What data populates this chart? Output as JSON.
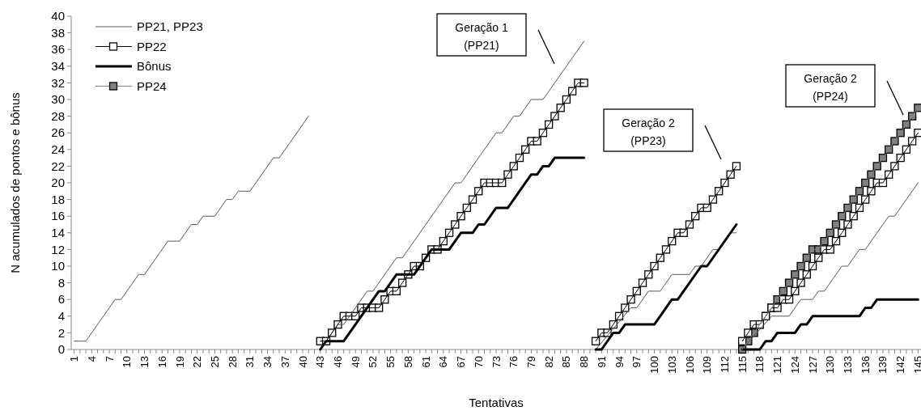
{
  "chart_data": {
    "type": "line",
    "xlabel": "Tentativas",
    "ylabel": "N acumulados de pontos e bônus",
    "xlim": [
      0.5,
      145.5
    ],
    "xticks": [
      1,
      4,
      7,
      10,
      13,
      16,
      19,
      22,
      25,
      28,
      31,
      34,
      37,
      40,
      43,
      46,
      49,
      52,
      55,
      58,
      61,
      64,
      67,
      70,
      73,
      76,
      79,
      82,
      85,
      88,
      91,
      94,
      97,
      100,
      103,
      106,
      109,
      112,
      115,
      118,
      121,
      124,
      127,
      130,
      133,
      136,
      139,
      142,
      145
    ],
    "ylim": [
      0,
      40
    ],
    "yticks": [
      0,
      2,
      4,
      6,
      8,
      10,
      12,
      14,
      16,
      18,
      20,
      22,
      24,
      26,
      28,
      30,
      32,
      34,
      36,
      38,
      40
    ],
    "legend": "top left",
    "annotations": [
      "Geração 1\n(PP21)",
      "Geração 2\n(PP23)",
      "Geração 2\n(PP24)"
    ],
    "series": [
      {
        "name": "PP21, PP23",
        "color": "#595959",
        "marker": "none",
        "x": [
          1,
          3,
          8,
          9,
          12,
          13,
          17,
          19,
          21,
          22,
          23,
          25,
          27,
          28,
          29,
          31,
          35,
          36,
          41,
          42,
          43,
          46,
          47,
          51,
          52,
          56,
          57,
          66,
          67,
          73,
          74,
          76,
          77,
          79,
          81,
          88,
          89,
          90,
          96,
          97,
          99,
          101,
          103,
          106,
          107,
          108,
          110,
          111,
          113,
          114,
          114.5,
          115,
          120,
          123,
          125,
          127,
          128,
          129,
          132,
          133,
          135,
          136,
          140,
          141,
          145
        ],
        "values": [
          1,
          1,
          6,
          6,
          9,
          9,
          13,
          13,
          15,
          15,
          16,
          16,
          18,
          18,
          19,
          19,
          23,
          23,
          28,
          null,
          0,
          3,
          3,
          7,
          7,
          11,
          11,
          20,
          20,
          26,
          26,
          28,
          28,
          30,
          30,
          37,
          null,
          0,
          5,
          5,
          7,
          7,
          9,
          9,
          10,
          10,
          12,
          12,
          14,
          14,
          null,
          0,
          4,
          4,
          6,
          6,
          7,
          7,
          10,
          10,
          12,
          12,
          16,
          16,
          20
        ]
      },
      {
        "name": "PP22",
        "color": "#000000",
        "marker": "square",
        "x": [
          43,
          44,
          45,
          46,
          47,
          48,
          49,
          50,
          51,
          52,
          53,
          54,
          55,
          56,
          57,
          58,
          59,
          60,
          61,
          62,
          63,
          64,
          65,
          66,
          67,
          68,
          69,
          70,
          71,
          72,
          73,
          74,
          75,
          76,
          77,
          78,
          79,
          80,
          81,
          82,
          83,
          84,
          85,
          86,
          87,
          88,
          89,
          90,
          91,
          92,
          93,
          94,
          95,
          96,
          97,
          98,
          99,
          100,
          101,
          102,
          103,
          104,
          105,
          106,
          107,
          108,
          109,
          110,
          111,
          112,
          113,
          114,
          114.5,
          115,
          116,
          117,
          118,
          119,
          120,
          121,
          122,
          123,
          124,
          125,
          126,
          127,
          128,
          129,
          130,
          131,
          132,
          133,
          134,
          135,
          136,
          137,
          138,
          139,
          140,
          141,
          142,
          143,
          144,
          145
        ],
        "values": [
          1,
          1,
          2,
          3,
          4,
          4,
          4,
          5,
          5,
          5,
          5,
          6,
          7,
          7,
          8,
          9,
          10,
          10,
          11,
          12,
          12,
          13,
          14,
          15,
          16,
          17,
          18,
          19,
          20,
          20,
          20,
          20,
          21,
          22,
          23,
          24,
          25,
          25,
          26,
          27,
          28,
          29,
          30,
          31,
          32,
          32,
          null,
          1,
          2,
          2,
          3,
          4,
          5,
          6,
          7,
          8,
          9,
          10,
          11,
          12,
          13,
          14,
          14,
          15,
          16,
          17,
          17,
          18,
          19,
          20,
          21,
          22,
          null,
          1,
          2,
          3,
          3,
          4,
          5,
          5,
          6,
          6,
          7,
          8,
          9,
          10,
          11,
          12,
          12,
          13,
          14,
          15,
          16,
          17,
          18,
          19,
          20,
          20,
          21,
          22,
          23,
          24,
          25,
          26
        ]
      },
      {
        "name": "Bônus",
        "color": "#000000",
        "marker": "none",
        "x": [
          43,
          44,
          47,
          53,
          54,
          56,
          59,
          62,
          65,
          67,
          69,
          70,
          71,
          73,
          75,
          79,
          80,
          81,
          82,
          83,
          88,
          89,
          90,
          91,
          93,
          94,
          95,
          100,
          103,
          104,
          108,
          109,
          114,
          114.5,
          115,
          118,
          119,
          120,
          121,
          124,
          125,
          126,
          127,
          135,
          136,
          137,
          138,
          145
        ],
        "values": [
          0,
          1,
          1,
          7,
          7,
          9,
          9,
          12,
          12,
          14,
          14,
          15,
          15,
          17,
          17,
          21,
          21,
          22,
          22,
          23,
          23,
          null,
          0,
          0,
          2,
          2,
          3,
          3,
          6,
          6,
          10,
          10,
          15,
          null,
          0,
          0,
          1,
          1,
          2,
          2,
          3,
          3,
          4,
          4,
          5,
          5,
          6,
          6
        ]
      },
      {
        "name": "PP24",
        "color": "#808080",
        "marker": "square",
        "x": [
          115,
          116,
          117,
          118,
          119,
          120,
          121,
          122,
          123,
          124,
          125,
          126,
          127,
          128,
          129,
          130,
          131,
          132,
          133,
          134,
          135,
          136,
          137,
          138,
          139,
          140,
          141,
          142,
          143,
          144,
          145
        ],
        "values": [
          0,
          1,
          2,
          3,
          4,
          5,
          6,
          7,
          8,
          9,
          10,
          11,
          12,
          12,
          13,
          14,
          15,
          16,
          17,
          18,
          19,
          20,
          21,
          22,
          23,
          24,
          25,
          26,
          27,
          28,
          29
        ]
      }
    ]
  }
}
